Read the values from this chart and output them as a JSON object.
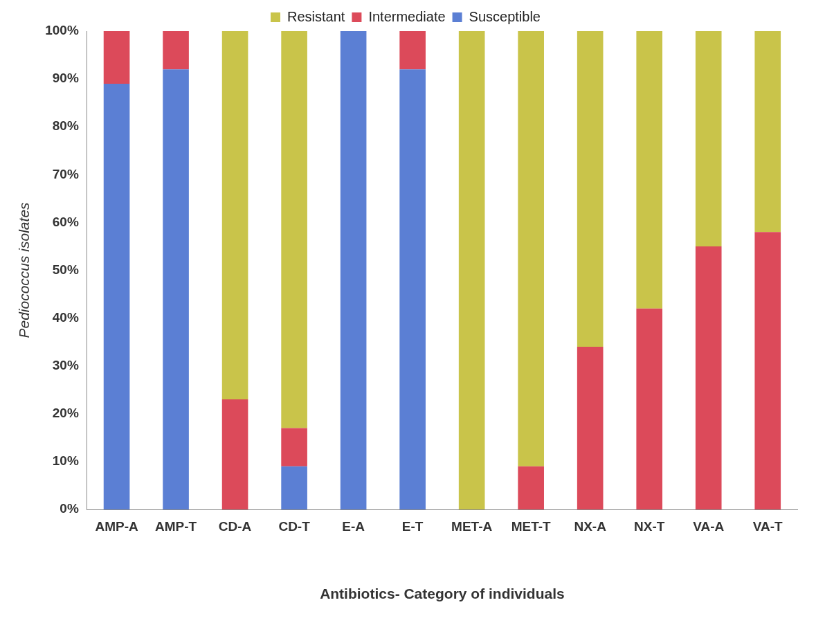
{
  "chart_data": {
    "type": "bar",
    "stacked": true,
    "xlabel": "Antibiotics- Category of individuals",
    "ylabel": "Pediococcus isolates",
    "categories": [
      "AMP-A",
      "AMP-T",
      "CD-A",
      "CD-T",
      "E-A",
      "E-T",
      "MET-A",
      "MET-T",
      "NX-A",
      "NX-T",
      "VA-A",
      "VA-T"
    ],
    "series": [
      {
        "name": "Susceptible",
        "color": "#5b7fd4",
        "values": [
          89,
          92,
          0,
          9,
          100,
          92,
          0,
          0,
          0,
          0,
          0,
          0
        ]
      },
      {
        "name": "Intermediate",
        "color": "#dc4a5a",
        "values": [
          11,
          8,
          23,
          8,
          0,
          8,
          0,
          9,
          34,
          42,
          55,
          58
        ]
      },
      {
        "name": "Resistant",
        "color": "#c9c44a",
        "values": [
          0,
          0,
          77,
          83,
          0,
          0,
          100,
          91,
          66,
          58,
          45,
          42
        ]
      }
    ],
    "ylim": [
      0,
      100
    ],
    "yticks": [
      {
        "value": 0,
        "label": "0%"
      },
      {
        "value": 10,
        "label": "10%"
      },
      {
        "value": 20,
        "label": "20%"
      },
      {
        "value": 30,
        "label": "30%"
      },
      {
        "value": 40,
        "label": "40%"
      },
      {
        "value": 50,
        "label": "50%"
      },
      {
        "value": 60,
        "label": "60%"
      },
      {
        "value": 70,
        "label": "70%"
      },
      {
        "value": 80,
        "label": "80%"
      },
      {
        "value": 90,
        "label": "90%"
      },
      {
        "value": 100,
        "label": "100%"
      }
    ],
    "grid": false,
    "legend": "top"
  }
}
